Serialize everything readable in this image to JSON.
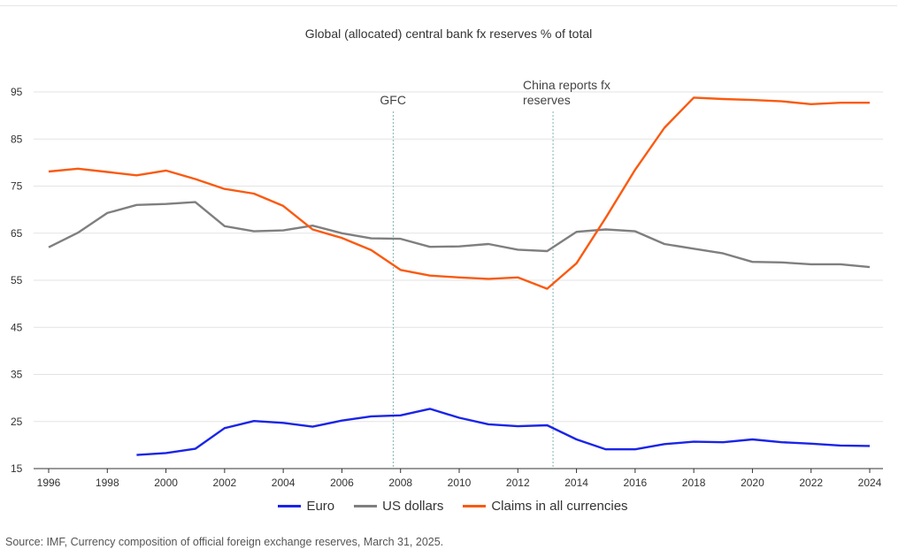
{
  "chart_data": {
    "type": "line",
    "title": "Global (allocated) central bank fx reserves % of total",
    "x": [
      1996,
      1997,
      1998,
      1999,
      2000,
      2001,
      2002,
      2003,
      2004,
      2005,
      2006,
      2007,
      2008,
      2009,
      2010,
      2011,
      2012,
      2013,
      2014,
      2015,
      2016,
      2017,
      2018,
      2019,
      2020,
      2021,
      2022,
      2023,
      2024
    ],
    "series": [
      {
        "name": "Euro",
        "color": "#1a24e8",
        "values": [
          null,
          null,
          null,
          17.9,
          18.3,
          19.2,
          23.6,
          25.1,
          24.7,
          23.9,
          25.2,
          26.1,
          26.3,
          27.7,
          25.8,
          24.4,
          24.0,
          24.2,
          21.2,
          19.1,
          19.1,
          20.2,
          20.7,
          20.6,
          21.2,
          20.6,
          20.3,
          19.9,
          19.8
        ]
      },
      {
        "name": "US dollars",
        "color": "#7f7f7f",
        "values": [
          62.0,
          65.1,
          69.3,
          71.0,
          71.2,
          71.6,
          66.5,
          65.4,
          65.6,
          66.6,
          65.0,
          63.9,
          63.8,
          62.1,
          62.2,
          62.7,
          61.5,
          61.2,
          65.3,
          65.8,
          65.4,
          62.7,
          61.7,
          60.7,
          58.9,
          58.8,
          58.4,
          58.4,
          57.8
        ]
      },
      {
        "name": "Claims in all currencies",
        "color": "#fa5a10",
        "values": [
          78.1,
          78.7,
          78.0,
          77.3,
          78.3,
          76.5,
          74.4,
          73.4,
          70.8,
          65.8,
          64.0,
          61.4,
          57.2,
          56.0,
          55.6,
          55.3,
          55.6,
          53.2,
          58.6,
          68.3,
          78.5,
          87.4,
          93.8,
          93.5,
          93.3,
          93.0,
          92.4,
          92.7,
          92.7
        ]
      }
    ],
    "ylim": [
      15,
      100
    ],
    "yticks": [
      "15",
      "25",
      "35",
      "45",
      "55",
      "65",
      "75",
      "85",
      "95"
    ],
    "xticks": [
      "1996",
      "1998",
      "2000",
      "2002",
      "2004",
      "2006",
      "2008",
      "2010",
      "2012",
      "2014",
      "2016",
      "2018",
      "2020",
      "2022",
      "2024"
    ],
    "grid": true,
    "legend_position": "bottom",
    "annotations": [
      {
        "x": 2007.75,
        "lines": [
          "GFC"
        ]
      },
      {
        "x": 2013.2,
        "lines": [
          "China reports fx",
          "reserves"
        ]
      }
    ]
  },
  "source": "Source: IMF, Currency composition of official foreign exchange reserves, March 31, 2025."
}
